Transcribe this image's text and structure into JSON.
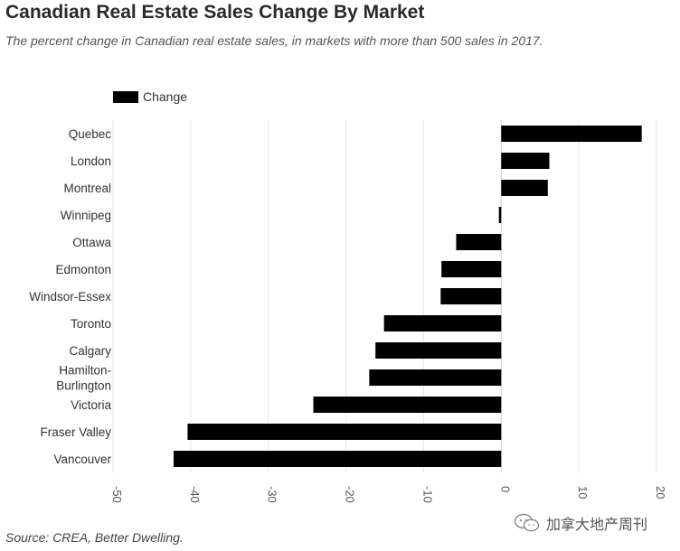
{
  "chart_data": {
    "type": "bar",
    "orientation": "horizontal",
    "title": "Canadian Real Estate Sales Change By Market",
    "subtitle": "The percent change in Canadian real estate sales, in markets with more than 500 sales in 2017.",
    "source": "Source: CREA, Better Dwelling.",
    "legend": {
      "label": "Change",
      "position": "top-left"
    },
    "categories": [
      "Quebec",
      "London",
      "Montreal",
      "Winnipeg",
      "Ottawa",
      "Edmonton",
      "Windsor-Essex",
      "Toronto",
      "Calgary",
      "Hamilton-Burlington",
      "Victoria",
      "Fraser Valley",
      "Vancouver"
    ],
    "category_lines": [
      [
        "Quebec"
      ],
      [
        "London"
      ],
      [
        "Montreal"
      ],
      [
        "Winnipeg"
      ],
      [
        "Ottawa"
      ],
      [
        "Edmonton"
      ],
      [
        "Windsor-Essex"
      ],
      [
        "Toronto"
      ],
      [
        "Calgary"
      ],
      [
        "Hamilton-",
        "Burlington"
      ],
      [
        "Victoria"
      ],
      [
        "Fraser Valley"
      ],
      [
        "Vancouver"
      ]
    ],
    "series": [
      {
        "name": "Change",
        "values": [
          18.1,
          6.2,
          6.0,
          -0.3,
          -5.8,
          -7.7,
          -7.8,
          -15.1,
          -16.2,
          -17.0,
          -24.2,
          -40.4,
          -42.2
        ]
      }
    ],
    "xlim": [
      -50,
      20
    ],
    "xticks": [
      -50,
      -40,
      -30,
      -20,
      -10,
      0,
      10,
      20
    ],
    "grid": true,
    "bar_color": "#000000",
    "grid_color": "#e6e6e6",
    "axis_color": "#d0d0d0"
  },
  "watermark": {
    "text": "加拿大地产周刊",
    "icon": "wechat-icon"
  }
}
